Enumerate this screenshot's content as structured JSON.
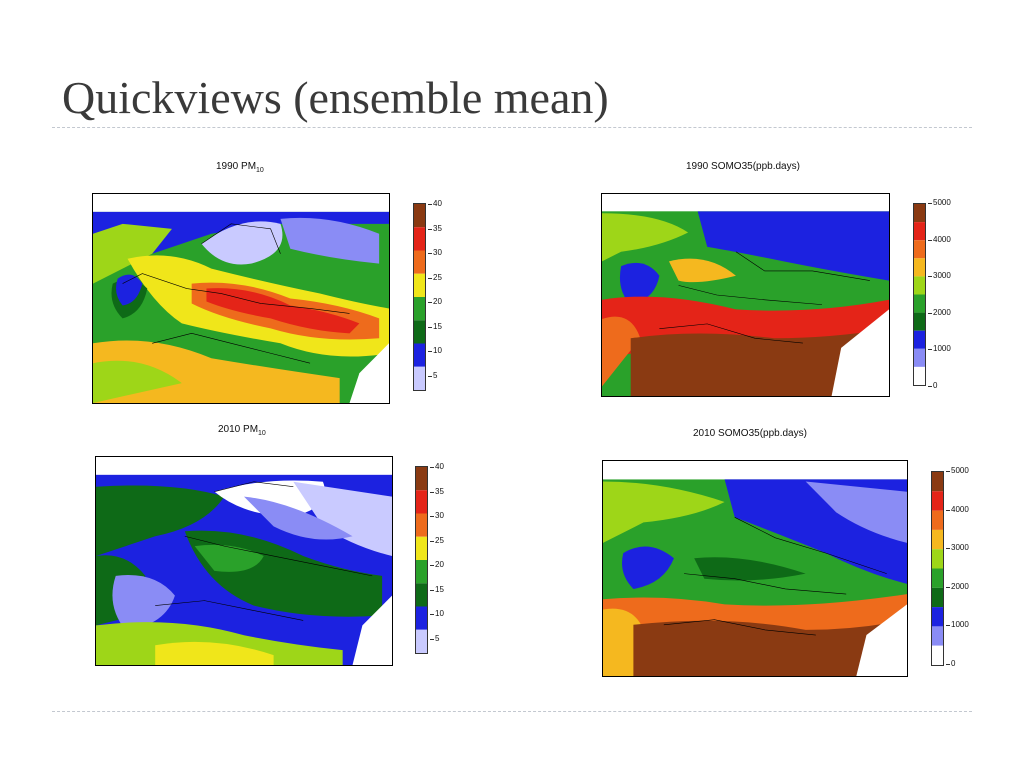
{
  "slide": {
    "title": "Quickviews (ensemble mean)"
  },
  "panels": [
    {
      "title": "1990 PM",
      "title_sub": "10",
      "variable": "PM10",
      "year": "1990",
      "scale_ticks": [
        "40",
        "35",
        "30",
        "25",
        "20",
        "15",
        "10",
        "5"
      ],
      "colors": [
        "#ffffff",
        "#c9caff",
        "#8a8cf5",
        "#1c22e0",
        "#0e6a17",
        "#2aa12a",
        "#9ed618",
        "#f0e61a",
        "#f5b81f",
        "#ee6b1c",
        "#e42418",
        "#b31c0f",
        "#8a3a12"
      ]
    },
    {
      "title": "1990 SOMO35(ppb.days)",
      "title_sub": "",
      "variable": "SOMO35",
      "year": "1990",
      "scale_ticks": [
        "5000",
        "4000",
        "3000",
        "2000",
        "1000",
        "0"
      ],
      "colors": [
        "#ffffff",
        "#c9caff",
        "#8a8cf5",
        "#1c22e0",
        "#0e6a17",
        "#2aa12a",
        "#9ed618",
        "#f0e61a",
        "#f5b81f",
        "#ee6b1c",
        "#e42418",
        "#b31c0f",
        "#8a3a12"
      ]
    },
    {
      "title": "2010 PM",
      "title_sub": "10",
      "variable": "PM10",
      "year": "2010",
      "scale_ticks": [
        "40",
        "35",
        "30",
        "25",
        "20",
        "15",
        "10",
        "5"
      ],
      "colors": [
        "#ffffff",
        "#c9caff",
        "#8a8cf5",
        "#1c22e0",
        "#0e6a17",
        "#2aa12a",
        "#9ed618",
        "#f0e61a",
        "#f5b81f",
        "#ee6b1c",
        "#e42418",
        "#b31c0f",
        "#8a3a12"
      ]
    },
    {
      "title": "2010 SOMO35(ppb.days)",
      "title_sub": "",
      "variable": "SOMO35",
      "year": "2010",
      "scale_ticks": [
        "5000",
        "4000",
        "3000",
        "2000",
        "1000",
        "0"
      ],
      "colors": [
        "#ffffff",
        "#c9caff",
        "#8a8cf5",
        "#1c22e0",
        "#0e6a17",
        "#2aa12a",
        "#9ed618",
        "#f0e61a",
        "#f5b81f",
        "#ee6b1c",
        "#e42418",
        "#b31c0f",
        "#8a3a12"
      ]
    }
  ]
}
